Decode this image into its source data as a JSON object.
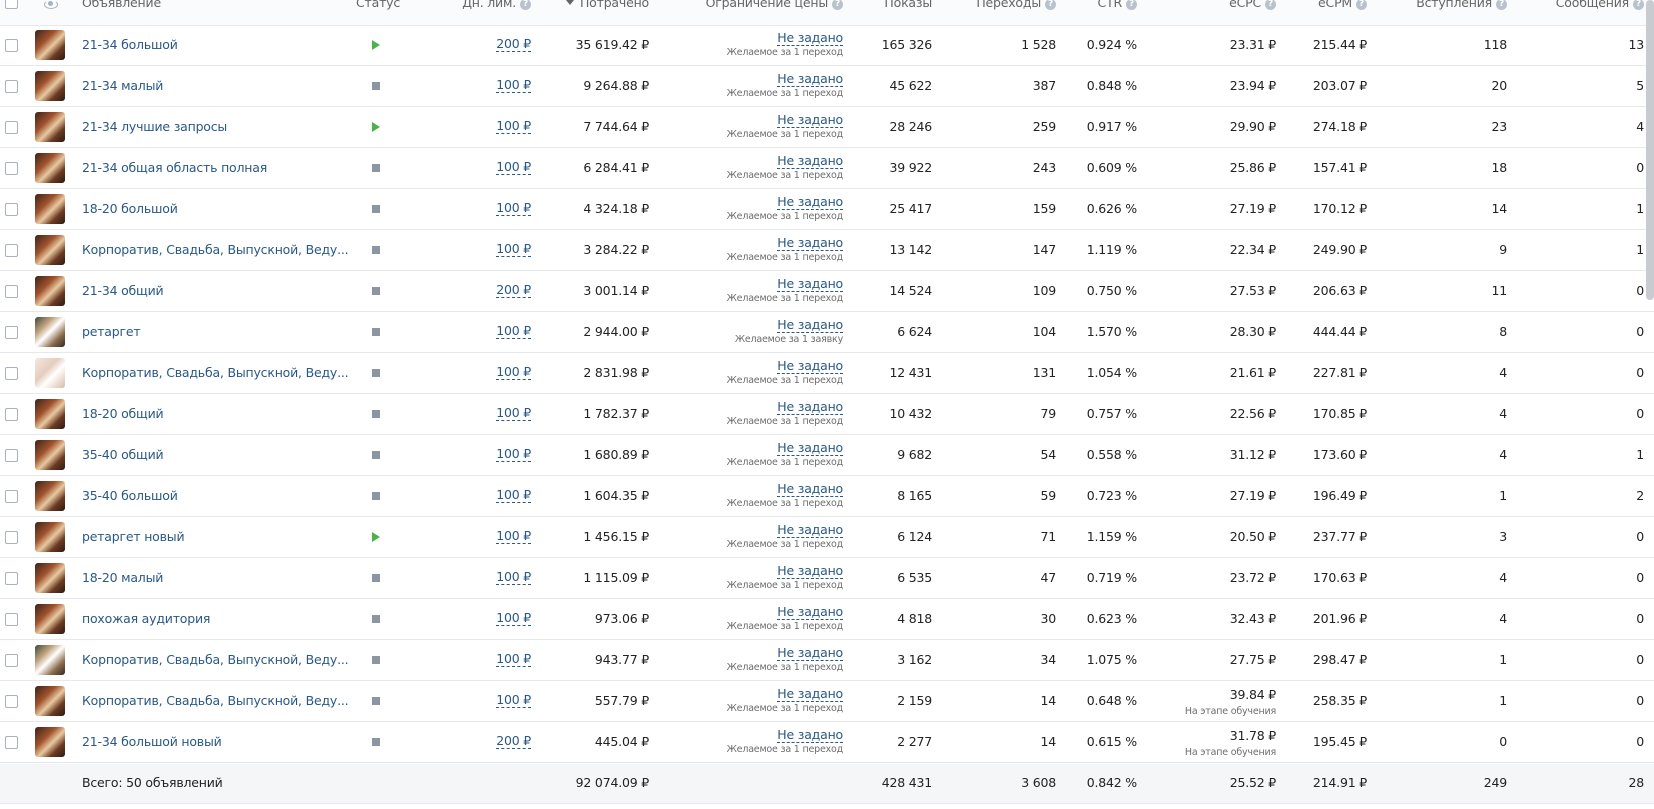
{
  "header": {
    "ad": "Объявление",
    "status": "Статус",
    "daily_limit": "Дн. лим.",
    "spent": "Потрачено",
    "price_limit": "Ограничение цены",
    "impressions": "Показы",
    "clicks": "Переходы",
    "ctr": "CTR",
    "ecpc": "eCPC",
    "ecpm": "eCPM",
    "joins": "Вступления",
    "messages": "Сообщения"
  },
  "rows": [
    {
      "name": "21-34 большой",
      "status": "active",
      "limit": "200 ₽",
      "spent": "35 619.42 ₽",
      "pc": "Не задано",
      "pc_sub": "Желаемое за 1 переход",
      "impr": "165 326",
      "clicks": "1 528",
      "ctr": "0.924 %",
      "ecpc": "23.31 ₽",
      "ecpc_sub": "",
      "ecpm": "215.44 ₽",
      "joins": "118",
      "msgs": "13",
      "thumb": "dark"
    },
    {
      "name": "21-34 малый",
      "status": "stopped",
      "limit": "100 ₽",
      "spent": "9 264.88 ₽",
      "pc": "Не задано",
      "pc_sub": "Желаемое за 1 переход",
      "impr": "45 622",
      "clicks": "387",
      "ctr": "0.848 %",
      "ecpc": "23.94 ₽",
      "ecpc_sub": "",
      "ecpm": "203.07 ₽",
      "joins": "20",
      "msgs": "5",
      "thumb": "dark"
    },
    {
      "name": "21-34 лучшие запросы",
      "status": "active",
      "limit": "100 ₽",
      "spent": "7 744.64 ₽",
      "pc": "Не задано",
      "pc_sub": "Желаемое за 1 переход",
      "impr": "28 246",
      "clicks": "259",
      "ctr": "0.917 %",
      "ecpc": "29.90 ₽",
      "ecpc_sub": "",
      "ecpm": "274.18 ₽",
      "joins": "23",
      "msgs": "4",
      "thumb": "dark"
    },
    {
      "name": "21-34 общая область полная",
      "status": "stopped",
      "limit": "100 ₽",
      "spent": "6 284.41 ₽",
      "pc": "Не задано",
      "pc_sub": "Желаемое за 1 переход",
      "impr": "39 922",
      "clicks": "243",
      "ctr": "0.609 %",
      "ecpc": "25.86 ₽",
      "ecpc_sub": "",
      "ecpm": "157.41 ₽",
      "joins": "18",
      "msgs": "0",
      "thumb": "dark"
    },
    {
      "name": "18-20 большой",
      "status": "stopped",
      "limit": "100 ₽",
      "spent": "4 324.18 ₽",
      "pc": "Не задано",
      "pc_sub": "Желаемое за 1 переход",
      "impr": "25 417",
      "clicks": "159",
      "ctr": "0.626 %",
      "ecpc": "27.19 ₽",
      "ecpc_sub": "",
      "ecpm": "170.12 ₽",
      "joins": "14",
      "msgs": "1",
      "thumb": "dark"
    },
    {
      "name": "Корпоратив, Свадьба, Выпускной, Веду...",
      "status": "stopped",
      "limit": "100 ₽",
      "spent": "3 284.22 ₽",
      "pc": "Не задано",
      "pc_sub": "Желаемое за 1 переход",
      "impr": "13 142",
      "clicks": "147",
      "ctr": "1.119 %",
      "ecpc": "22.34 ₽",
      "ecpc_sub": "",
      "ecpm": "249.90 ₽",
      "joins": "9",
      "msgs": "1",
      "thumb": "dark"
    },
    {
      "name": "21-34 общий",
      "status": "stopped",
      "limit": "200 ₽",
      "spent": "3 001.14 ₽",
      "pc": "Не задано",
      "pc_sub": "Желаемое за 1 переход",
      "impr": "14 524",
      "clicks": "109",
      "ctr": "0.750 %",
      "ecpc": "27.53 ₽",
      "ecpc_sub": "",
      "ecpm": "206.63 ₽",
      "joins": "11",
      "msgs": "0",
      "thumb": "dark"
    },
    {
      "name": "ретаргет",
      "status": "stopped",
      "limit": "100 ₽",
      "spent": "2 944.00 ₽",
      "pc": "Не задано",
      "pc_sub": "Желаемое за 1 заявку",
      "impr": "6 624",
      "clicks": "104",
      "ctr": "1.570 %",
      "ecpc": "28.30 ₽",
      "ecpc_sub": "",
      "ecpm": "444.44 ₽",
      "joins": "8",
      "msgs": "0",
      "thumb": "photo"
    },
    {
      "name": "Корпоратив, Свадьба, Выпускной, Веду...",
      "status": "stopped",
      "limit": "100 ₽",
      "spent": "2 831.98 ₽",
      "pc": "Не задано",
      "pc_sub": "Желаемое за 1 переход",
      "impr": "12 431",
      "clicks": "131",
      "ctr": "1.054 %",
      "ecpc": "21.61 ₽",
      "ecpc_sub": "",
      "ecpm": "227.81 ₽",
      "joins": "4",
      "msgs": "0",
      "thumb": "light"
    },
    {
      "name": "18-20 общий",
      "status": "stopped",
      "limit": "100 ₽",
      "spent": "1 782.37 ₽",
      "pc": "Не задано",
      "pc_sub": "Желаемое за 1 переход",
      "impr": "10 432",
      "clicks": "79",
      "ctr": "0.757 %",
      "ecpc": "22.56 ₽",
      "ecpc_sub": "",
      "ecpm": "170.85 ₽",
      "joins": "4",
      "msgs": "0",
      "thumb": "dark"
    },
    {
      "name": "35-40 общий",
      "status": "stopped",
      "limit": "100 ₽",
      "spent": "1 680.89 ₽",
      "pc": "Не задано",
      "pc_sub": "Желаемое за 1 переход",
      "impr": "9 682",
      "clicks": "54",
      "ctr": "0.558 %",
      "ecpc": "31.12 ₽",
      "ecpc_sub": "",
      "ecpm": "173.60 ₽",
      "joins": "4",
      "msgs": "1",
      "thumb": "dark"
    },
    {
      "name": "35-40 большой",
      "status": "stopped",
      "limit": "100 ₽",
      "spent": "1 604.35 ₽",
      "pc": "Не задано",
      "pc_sub": "Желаемое за 1 переход",
      "impr": "8 165",
      "clicks": "59",
      "ctr": "0.723 %",
      "ecpc": "27.19 ₽",
      "ecpc_sub": "",
      "ecpm": "196.49 ₽",
      "joins": "1",
      "msgs": "2",
      "thumb": "dark"
    },
    {
      "name": "ретаргет новый",
      "status": "active",
      "limit": "100 ₽",
      "spent": "1 456.15 ₽",
      "pc": "Не задано",
      "pc_sub": "Желаемое за 1 переход",
      "impr": "6 124",
      "clicks": "71",
      "ctr": "1.159 %",
      "ecpc": "20.50 ₽",
      "ecpc_sub": "",
      "ecpm": "237.77 ₽",
      "joins": "3",
      "msgs": "0",
      "thumb": "dark"
    },
    {
      "name": "18-20 малый",
      "status": "stopped",
      "limit": "100 ₽",
      "spent": "1 115.09 ₽",
      "pc": "Не задано",
      "pc_sub": "Желаемое за 1 переход",
      "impr": "6 535",
      "clicks": "47",
      "ctr": "0.719 %",
      "ecpc": "23.72 ₽",
      "ecpc_sub": "",
      "ecpm": "170.63 ₽",
      "joins": "4",
      "msgs": "0",
      "thumb": "dark"
    },
    {
      "name": "похожая аудитория",
      "status": "stopped",
      "limit": "100 ₽",
      "spent": "973.06 ₽",
      "pc": "Не задано",
      "pc_sub": "Желаемое за 1 переход",
      "impr": "4 818",
      "clicks": "30",
      "ctr": "0.623 %",
      "ecpc": "32.43 ₽",
      "ecpc_sub": "",
      "ecpm": "201.96 ₽",
      "joins": "4",
      "msgs": "0",
      "thumb": "dark"
    },
    {
      "name": "Корпоратив, Свадьба, Выпускной, Веду...",
      "status": "stopped",
      "limit": "100 ₽",
      "spent": "943.77 ₽",
      "pc": "Не задано",
      "pc_sub": "Желаемое за 1 переход",
      "impr": "3 162",
      "clicks": "34",
      "ctr": "1.075 %",
      "ecpc": "27.75 ₽",
      "ecpc_sub": "",
      "ecpm": "298.47 ₽",
      "joins": "1",
      "msgs": "0",
      "thumb": "photo"
    },
    {
      "name": "Корпоратив, Свадьба, Выпускной, Веду...",
      "status": "stopped",
      "limit": "100 ₽",
      "spent": "557.79 ₽",
      "pc": "Не задано",
      "pc_sub": "Желаемое за 1 переход",
      "impr": "2 159",
      "clicks": "14",
      "ctr": "0.648 %",
      "ecpc": "39.84 ₽",
      "ecpc_sub": "На этапе обучения",
      "ecpm": "258.35 ₽",
      "joins": "1",
      "msgs": "0",
      "thumb": "dark"
    },
    {
      "name": "21-34 большой новый",
      "status": "stopped",
      "limit": "200 ₽",
      "spent": "445.04 ₽",
      "pc": "Не задано",
      "pc_sub": "Желаемое за 1 переход",
      "impr": "2 277",
      "clicks": "14",
      "ctr": "0.615 %",
      "ecpc": "31.78 ₽",
      "ecpc_sub": "На этапе обучения",
      "ecpm": "195.45 ₽",
      "joins": "0",
      "msgs": "0",
      "thumb": "dark"
    }
  ],
  "total": {
    "label": "Всего: 50 объявлений",
    "spent": "92 074.09 ₽",
    "impr": "428 431",
    "clicks": "3 608",
    "ctr": "0.842 %",
    "ecpc": "25.52 ₽",
    "ecpm": "214.91 ₽",
    "joins": "249",
    "msgs": "28"
  },
  "colors": {
    "link": "#2a5885",
    "active": "#4bb34b",
    "stopped": "#8c96a2"
  },
  "icons": {
    "visibility_column": "eye-icon",
    "help": "help-icon",
    "sort": "sort-desc-icon"
  }
}
